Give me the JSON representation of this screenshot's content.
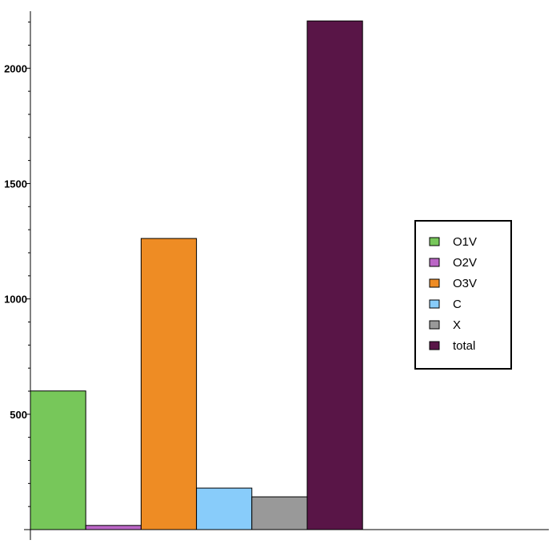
{
  "chart_data": {
    "type": "bar",
    "categories": [
      "O1V",
      "O2V",
      "O3V",
      "C",
      "X",
      "total"
    ],
    "values": [
      601,
      18,
      1262,
      180,
      142,
      2205
    ],
    "colors": [
      "#77c75a",
      "#bb66c6",
      "#ee8c24",
      "#88ccfa",
      "#999999",
      "#591547"
    ],
    "yticks": [
      500,
      1000,
      1500,
      2000
    ],
    "ylim": [
      0,
      2250
    ],
    "minor_tick_step": 100,
    "legend_placement": "right",
    "grid": false,
    "title": "",
    "xlabel": "",
    "ylabel": ""
  }
}
